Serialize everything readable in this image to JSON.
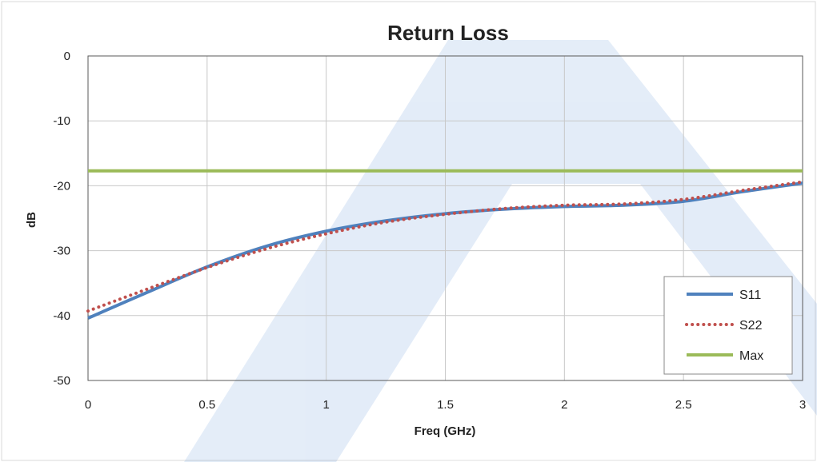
{
  "chart_data": {
    "type": "line",
    "title": "Return Loss",
    "xlabel": "Freq (GHz)",
    "ylabel": "dB",
    "xlim": [
      0,
      3
    ],
    "ylim": [
      -50,
      0
    ],
    "xticks": [
      "0",
      "0.5",
      "1",
      "1.5",
      "2",
      "2.5",
      "3"
    ],
    "yticks": [
      "0",
      "-10",
      "-20",
      "-30",
      "-40",
      "-50"
    ],
    "grid": true,
    "legend_position": "bottom-right",
    "series": [
      {
        "name": "S11",
        "color": "#4f81bd",
        "style": "solid",
        "x": [
          0,
          0.25,
          0.5,
          0.75,
          1,
          1.25,
          1.5,
          1.75,
          2,
          2.25,
          2.5,
          2.75,
          3
        ],
        "y": [
          -40.4,
          -36.4,
          -32.5,
          -29.3,
          -27.0,
          -25.4,
          -24.3,
          -23.6,
          -23.2,
          -23.0,
          -22.4,
          -20.9,
          -19.6
        ]
      },
      {
        "name": "S22",
        "color": "#c0504d",
        "style": "dotted",
        "x": [
          0,
          0.25,
          0.5,
          0.75,
          1,
          1.25,
          1.5,
          1.75,
          2,
          2.25,
          2.5,
          2.75,
          3
        ],
        "y": [
          -39.3,
          -35.9,
          -32.6,
          -29.7,
          -27.4,
          -25.6,
          -24.4,
          -23.5,
          -23.0,
          -22.8,
          -22.1,
          -20.7,
          -19.4
        ]
      },
      {
        "name": "Max",
        "color": "#9bbb59",
        "style": "solid",
        "x": [
          0,
          3
        ],
        "y": [
          -17.7,
          -17.7
        ]
      }
    ]
  }
}
